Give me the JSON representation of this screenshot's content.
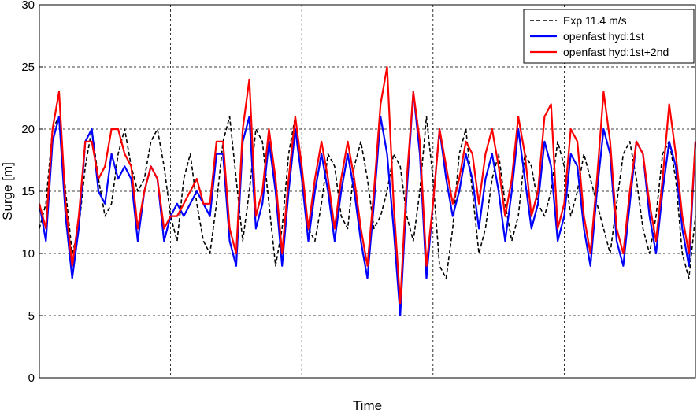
{
  "chart_data": {
    "type": "line",
    "xlabel": "Time",
    "ylabel": "Surge [m]",
    "ylim": [
      0,
      30
    ],
    "yticks": [
      0,
      5,
      10,
      15,
      20,
      25,
      30
    ],
    "x_ticks_labeled": false,
    "x_range": [
      0,
      100
    ],
    "grid": "dashed",
    "legend_position": "top-right",
    "series": [
      {
        "name": "Exp 11.4 m/s",
        "color": "#000000",
        "style": "dashed",
        "x": [
          0,
          1,
          2,
          3,
          4,
          5,
          6,
          7,
          8,
          9,
          10,
          11,
          12,
          13,
          14,
          15,
          16,
          17,
          18,
          19,
          20,
          21,
          22,
          23,
          24,
          25,
          26,
          27,
          28,
          29,
          30,
          31,
          32,
          33,
          34,
          35,
          36,
          37,
          38,
          39,
          40,
          41,
          42,
          43,
          44,
          45,
          46,
          47,
          48,
          49,
          50,
          51,
          52,
          53,
          54,
          55,
          56,
          57,
          58,
          59,
          60,
          61,
          62,
          63,
          64,
          65,
          66,
          67,
          68,
          69,
          70,
          71,
          72,
          73,
          74,
          75,
          76,
          77,
          78,
          79,
          80,
          81,
          82,
          83,
          84,
          85,
          86,
          87,
          88,
          89,
          90,
          91,
          92,
          93,
          94,
          95,
          96,
          97,
          98,
          99,
          100
        ],
        "values": [
          12,
          14,
          20,
          21,
          15,
          10,
          12,
          17,
          20,
          16,
          13,
          14,
          18,
          20,
          17,
          15,
          16,
          19,
          20,
          17,
          13,
          11,
          16,
          18,
          14,
          11,
          10,
          14,
          19,
          21,
          16,
          11,
          15,
          20,
          19,
          14,
          9,
          12,
          18,
          21,
          17,
          12,
          11,
          14,
          18,
          17,
          13,
          12,
          17,
          19,
          16,
          12,
          13,
          15,
          18,
          17,
          13,
          11,
          15,
          21,
          16,
          9,
          8,
          12,
          18,
          20,
          15,
          10,
          12,
          16,
          18,
          14,
          11,
          13,
          18,
          17,
          14,
          13,
          15,
          19,
          17,
          13,
          15,
          18,
          16,
          14,
          12,
          10,
          14,
          18,
          19,
          16,
          12,
          10,
          13,
          18,
          19,
          16,
          10,
          8,
          13
        ]
      },
      {
        "name": "openfast hyd:1st",
        "color": "#0000ff",
        "style": "solid",
        "x": [
          0,
          1,
          2,
          3,
          4,
          5,
          6,
          7,
          8,
          9,
          10,
          11,
          12,
          13,
          14,
          15,
          16,
          17,
          18,
          19,
          20,
          21,
          22,
          23,
          24,
          25,
          26,
          27,
          28,
          29,
          30,
          31,
          32,
          33,
          34,
          35,
          36,
          37,
          38,
          39,
          40,
          41,
          42,
          43,
          44,
          45,
          46,
          47,
          48,
          49,
          50,
          51,
          52,
          53,
          54,
          55,
          56,
          57,
          58,
          59,
          60,
          61,
          62,
          63,
          64,
          65,
          66,
          67,
          68,
          69,
          70,
          71,
          72,
          73,
          74,
          75,
          76,
          77,
          78,
          79,
          80,
          81,
          82,
          83,
          84,
          85,
          86,
          87,
          88,
          89,
          90,
          91,
          92,
          93,
          94,
          95,
          96,
          97,
          98,
          99,
          100
        ],
        "values": [
          14,
          11,
          19,
          21,
          13,
          8,
          12,
          19,
          20,
          15,
          14,
          18,
          16,
          17,
          16,
          11,
          15,
          17,
          16,
          11,
          13,
          14,
          13,
          14,
          15,
          14,
          13,
          18,
          18,
          11,
          9,
          19,
          21,
          12,
          14,
          19,
          15,
          9,
          15,
          20,
          16,
          11,
          15,
          18,
          15,
          11,
          15,
          18,
          15,
          11,
          8,
          14,
          21,
          18,
          12,
          5,
          15,
          23,
          18,
          8,
          14,
          20,
          16,
          13,
          15,
          18,
          16,
          12,
          16,
          18,
          15,
          11,
          15,
          20,
          16,
          12,
          14,
          19,
          17,
          11,
          13,
          18,
          17,
          12,
          9,
          15,
          20,
          18,
          11,
          9,
          14,
          19,
          18,
          13,
          10,
          15,
          19,
          17,
          12,
          9,
          19
        ]
      },
      {
        "name": "openfast hyd:1st+2nd",
        "color": "#ff0000",
        "style": "solid",
        "x": [
          0,
          1,
          2,
          3,
          4,
          5,
          6,
          7,
          8,
          9,
          10,
          11,
          12,
          13,
          14,
          15,
          16,
          17,
          18,
          19,
          20,
          21,
          22,
          23,
          24,
          25,
          26,
          27,
          28,
          29,
          30,
          31,
          32,
          33,
          34,
          35,
          36,
          37,
          38,
          39,
          40,
          41,
          42,
          43,
          44,
          45,
          46,
          47,
          48,
          49,
          50,
          51,
          52,
          53,
          54,
          55,
          56,
          57,
          58,
          59,
          60,
          61,
          62,
          63,
          64,
          65,
          66,
          67,
          68,
          69,
          70,
          71,
          72,
          73,
          74,
          75,
          76,
          77,
          78,
          79,
          80,
          81,
          82,
          83,
          84,
          85,
          86,
          87,
          88,
          89,
          90,
          91,
          92,
          93,
          94,
          95,
          96,
          97,
          98,
          99,
          100
        ],
        "values": [
          14,
          12,
          20,
          23,
          14,
          9,
          13,
          19,
          19,
          16,
          17,
          20,
          20,
          18,
          17,
          12,
          15,
          17,
          16,
          12,
          13,
          13,
          14,
          15,
          16,
          14,
          14,
          19,
          19,
          12,
          10,
          20,
          24,
          13,
          15,
          20,
          16,
          10,
          16,
          21,
          17,
          12,
          16,
          19,
          16,
          12,
          16,
          19,
          16,
          12,
          9,
          15,
          22,
          25,
          14,
          6,
          16,
          23,
          19,
          9,
          14,
          20,
          17,
          14,
          16,
          19,
          18,
          14,
          18,
          20,
          17,
          13,
          16,
          21,
          18,
          13,
          15,
          21,
          22,
          12,
          14,
          20,
          19,
          13,
          10,
          16,
          23,
          19,
          12,
          10,
          15,
          19,
          18,
          14,
          11,
          16,
          22,
          18,
          13,
          10,
          19
        ]
      }
    ]
  }
}
